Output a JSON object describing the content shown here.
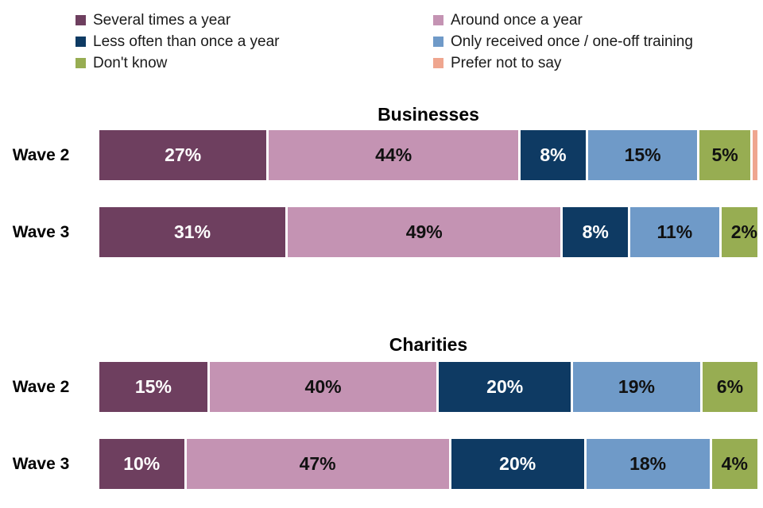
{
  "chart_data": {
    "type": "bar",
    "stacked": true,
    "orientation": "horizontal",
    "xlim": [
      0,
      100
    ],
    "legend_position": "top",
    "grid": false,
    "series_names": [
      "Several times a year",
      "Around once a year",
      "Less often than once a year",
      "Only received once / one-off training",
      "Don't know",
      "Prefer not to say"
    ],
    "series_colors": [
      "#6e3f5f",
      "#c493b3",
      "#0e3a63",
      "#6f9ac8",
      "#97ad52",
      "#efa68f"
    ],
    "series_label_text_colors": [
      "#ffffff",
      "#111111",
      "#ffffff",
      "#111111",
      "#111111",
      "#111111"
    ],
    "groups": [
      {
        "title": "Businesses",
        "rows": [
          {
            "label": "Wave 2",
            "values": [
              27,
              44,
              8,
              15,
              5,
              1
            ],
            "value_labels": [
              "27%",
              "44%",
              "8%",
              "15%",
              "5%",
              ""
            ]
          },
          {
            "label": "Wave 3",
            "values": [
              31,
              49,
              8,
              11,
              2,
              0
            ],
            "value_labels": [
              "31%",
              "49%",
              "8%",
              "11%",
              "2%",
              ""
            ]
          }
        ]
      },
      {
        "title": "Charities",
        "rows": [
          {
            "label": "Wave 2",
            "values": [
              15,
              40,
              20,
              19,
              6,
              0
            ],
            "value_labels": [
              "15%",
              "40%",
              "20%",
              "19%",
              "6%",
              ""
            ]
          },
          {
            "label": "Wave 3",
            "values": [
              10,
              47,
              20,
              18,
              4,
              0
            ],
            "value_labels": [
              "10%",
              "47%",
              "20%",
              "18%",
              "4%",
              ""
            ]
          }
        ]
      }
    ]
  }
}
